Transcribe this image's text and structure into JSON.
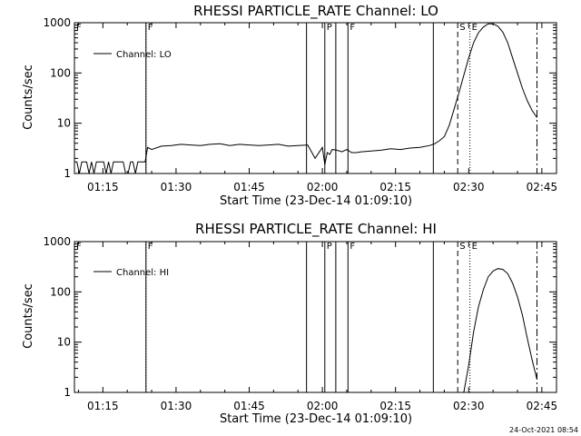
{
  "chart_data": [
    {
      "type": "line",
      "title": "RHESSI PARTICLE_RATE Channel: LO",
      "xlabel": "Start Time (23-Dec-14 01:09:10)",
      "ylabel": "Counts/sec",
      "yscale": "log",
      "ylim": [
        1,
        1000
      ],
      "xlim": [
        "01:09:10",
        "02:48:00"
      ],
      "x_ticks": [
        "01:15",
        "01:30",
        "01:45",
        "02:00",
        "02:15",
        "02:30",
        "02:45"
      ],
      "y_ticks": [
        "1",
        "10",
        "100",
        "1000"
      ],
      "legend": {
        "position": "top-left",
        "entries": [
          "Channel: LO"
        ]
      },
      "grid": false,
      "series": [
        {
          "name": "Channel: LO",
          "x": [
            "01:09:10",
            "01:09:40",
            "01:10:10",
            "01:10:40",
            "01:11:10",
            "01:11:40",
            "01:12:10",
            "01:12:40",
            "01:13:10",
            "01:13:40",
            "01:14:10",
            "01:14:40",
            "01:15:10",
            "01:15:40",
            "01:16:10",
            "01:16:40",
            "01:17:10",
            "01:17:40",
            "01:18:10",
            "01:18:40",
            "01:19:10",
            "01:19:40",
            "01:20:10",
            "01:20:40",
            "01:21:10",
            "01:21:40",
            "01:22:10",
            "01:22:40",
            "01:23:10",
            "01:23:40",
            "01:24:10",
            "01:25:00",
            "01:27:00",
            "01:29:00",
            "01:31:00",
            "01:33:00",
            "01:35:00",
            "01:37:00",
            "01:39:00",
            "01:41:00",
            "01:43:00",
            "01:45:00",
            "01:47:00",
            "01:49:00",
            "01:51:00",
            "01:53:00",
            "01:55:00",
            "01:57:00",
            "01:58:30",
            "02:00:00",
            "02:00:30",
            "02:01:00",
            "02:01:30",
            "02:02:00",
            "02:03:00",
            "02:04:00",
            "02:05:00",
            "02:06:00",
            "02:07:00",
            "02:08:00",
            "02:10:00",
            "02:12:00",
            "02:14:00",
            "02:16:00",
            "02:18:00",
            "02:20:00",
            "02:22:00",
            "02:23:00",
            "02:24:00",
            "02:25:00",
            "02:26:00",
            "02:27:00",
            "02:28:00",
            "02:29:00",
            "02:30:00",
            "02:31:00",
            "02:32:00",
            "02:33:00",
            "02:34:00",
            "02:35:00",
            "02:36:00",
            "02:37:00",
            "02:38:00",
            "02:39:00",
            "02:40:00",
            "02:41:00",
            "02:42:00",
            "02:43:00",
            "02:44:00"
          ],
          "values": [
            1.7,
            1.7,
            1.0,
            1.7,
            1.7,
            1.7,
            1.0,
            1.7,
            1.0,
            1.7,
            1.7,
            1.7,
            1.7,
            1.0,
            1.7,
            1.0,
            1.7,
            1.7,
            1.7,
            1.7,
            1.7,
            1.0,
            1.0,
            1.7,
            1.7,
            1.0,
            1.7,
            1.7,
            1.7,
            1.7,
            3.3,
            3.0,
            3.5,
            3.6,
            3.8,
            3.7,
            3.6,
            3.8,
            3.9,
            3.6,
            3.8,
            3.7,
            3.6,
            3.7,
            3.8,
            3.5,
            3.6,
            3.7,
            2.0,
            3.3,
            1.5,
            2.6,
            2.4,
            3.0,
            2.9,
            2.7,
            3.0,
            2.6,
            2.6,
            2.7,
            2.8,
            2.9,
            3.1,
            3.0,
            3.2,
            3.3,
            3.6,
            3.9,
            4.5,
            5.4,
            9,
            19,
            40,
            90,
            200,
            400,
            630,
            820,
            950,
            950,
            850,
            650,
            400,
            200,
            100,
            50,
            28,
            18,
            13
          ]
        }
      ],
      "annotations": [
        {
          "label": "F",
          "x": "01:09:10",
          "style": "dotted"
        },
        {
          "label": "F",
          "x": "01:23:50",
          "style": "dotted"
        },
        {
          "label": "F",
          "x": "01:23:50",
          "style": "solid"
        },
        {
          "label": "",
          "x": "01:56:45",
          "style": "solid"
        },
        {
          "label": "P",
          "x": "02:00:30",
          "style": "solid"
        },
        {
          "label": "",
          "x": "02:02:45",
          "style": "solid"
        },
        {
          "label": "F",
          "x": "02:05:15",
          "style": "solid"
        },
        {
          "label": "",
          "x": "02:22:45",
          "style": "solid"
        },
        {
          "label": "S",
          "x": "02:27:45",
          "style": "dashed"
        },
        {
          "label": "E",
          "x": "02:30:15",
          "style": "dotted"
        },
        {
          "label": "",
          "x": "02:44:00",
          "style": "dashdot"
        }
      ]
    },
    {
      "type": "line",
      "title": "RHESSI PARTICLE_RATE Channel: HI",
      "xlabel": "Start Time (23-Dec-14 01:09:10)",
      "ylabel": "Counts/sec",
      "yscale": "log",
      "ylim": [
        1,
        1000
      ],
      "xlim": [
        "01:09:10",
        "02:48:00"
      ],
      "x_ticks": [
        "01:15",
        "01:30",
        "01:45",
        "02:00",
        "02:15",
        "02:30",
        "02:45"
      ],
      "y_ticks": [
        "1",
        "10",
        "100",
        "1000"
      ],
      "legend": {
        "position": "top-left",
        "entries": [
          "Channel: HI"
        ]
      },
      "grid": false,
      "series": [
        {
          "name": "Channel: HI",
          "x": [
            "02:29:00",
            "02:30:00",
            "02:31:00",
            "02:32:00",
            "02:33:00",
            "02:34:00",
            "02:35:00",
            "02:36:00",
            "02:37:00",
            "02:38:00",
            "02:39:00",
            "02:40:00",
            "02:41:00",
            "02:42:00",
            "02:43:00",
            "02:44:00"
          ],
          "values": [
            1.0,
            3.5,
            16,
            50,
            110,
            200,
            260,
            290,
            280,
            230,
            150,
            80,
            35,
            12,
            4.5,
            1.8
          ]
        }
      ],
      "annotations": [
        {
          "label": "F",
          "x": "01:09:10",
          "style": "dotted"
        },
        {
          "label": "F",
          "x": "01:23:50",
          "style": "dotted"
        },
        {
          "label": "F",
          "x": "01:23:50",
          "style": "solid"
        },
        {
          "label": "",
          "x": "01:56:45",
          "style": "solid"
        },
        {
          "label": "P",
          "x": "02:00:30",
          "style": "solid"
        },
        {
          "label": "",
          "x": "02:02:45",
          "style": "solid"
        },
        {
          "label": "F",
          "x": "02:05:15",
          "style": "solid"
        },
        {
          "label": "",
          "x": "02:22:45",
          "style": "solid"
        },
        {
          "label": "S",
          "x": "02:27:45",
          "style": "dashed"
        },
        {
          "label": "E",
          "x": "02:30:15",
          "style": "dotted"
        },
        {
          "label": "",
          "x": "02:44:00",
          "style": "dashdot"
        }
      ]
    }
  ],
  "footer": {
    "timestamp": "24-Oct-2021 08:54"
  }
}
